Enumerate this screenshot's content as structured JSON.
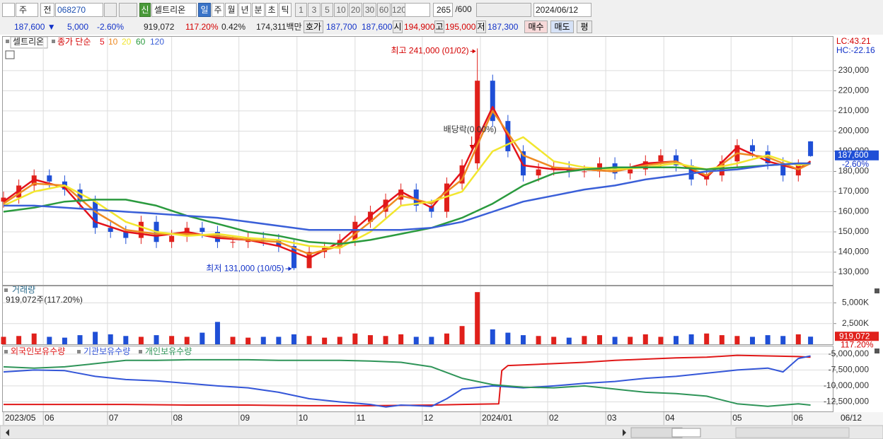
{
  "toolbar": {
    "market": "주",
    "scope": "전",
    "code": "068270",
    "badge": "신",
    "name": "셀트리온",
    "periods": [
      "일",
      "주",
      "월",
      "년",
      "분",
      "초",
      "틱"
    ],
    "intervals": [
      "1",
      "3",
      "5",
      "10",
      "20",
      "30",
      "60",
      "120"
    ],
    "count": "265",
    "max": "/600",
    "date": "2024/06/12"
  },
  "quote": {
    "price": "187,600 ▼",
    "change": "5,000",
    "change_rate": "-2.60%",
    "volume": "919,072",
    "volume_rate": "117.20%",
    "turnover": "0.42%",
    "amount": "174,311백만",
    "bid_ask_label": "호가",
    "ask": "187,700",
    "bid": "187,600",
    "open_label": "시",
    "open": "194,900",
    "high_label": "고",
    "high": "195,000",
    "low_label": "저",
    "low": "187,300",
    "buy": "매수",
    "sell": "매도",
    "avg": "평"
  },
  "chart_data": [
    {
      "type": "candlestick",
      "title": "셀트리온",
      "legend_label": "종가 단순",
      "corner_labels": [
        "LC:43.21",
        "HC:-22.16"
      ],
      "last_price_label": "187,600",
      "last_change_label": "-2.60%",
      "annotations": {
        "high": "최고 241,000 (01/02)",
        "low": "최저 131,000 (10/05)",
        "ex_dividend": "배당락(0.00%)"
      },
      "up_color": "#e0201b",
      "down_color": "#1f4fd6",
      "grid": true,
      "xlim": [
        0,
        271.5
      ],
      "ylim": [
        123700,
        246800
      ],
      "yticks": [
        {
          "value": 130000,
          "label": "130,000"
        },
        {
          "value": 140000,
          "label": "140,000"
        },
        {
          "value": 150000,
          "label": "150,000"
        },
        {
          "value": 160000,
          "label": "160,000"
        },
        {
          "value": 170000,
          "label": "170,000"
        },
        {
          "value": 180000,
          "label": "180,000"
        },
        {
          "value": 190000,
          "label": "190,000"
        },
        {
          "value": 200000,
          "label": "200,000"
        },
        {
          "value": 210000,
          "label": "210,000"
        },
        {
          "value": 220000,
          "label": "220,000"
        },
        {
          "value": 230000,
          "label": "230,000"
        }
      ],
      "x": [
        0,
        5,
        10,
        15,
        20,
        25,
        30,
        35,
        40,
        45,
        50,
        55,
        60,
        65,
        70,
        75,
        80,
        85,
        90,
        95,
        100,
        105,
        110,
        115,
        120,
        125,
        130,
        135,
        140,
        145,
        150,
        155,
        160,
        165,
        170,
        175,
        180,
        185,
        190,
        195,
        200,
        205,
        210,
        215,
        220,
        225,
        230,
        235,
        240,
        245,
        250,
        255,
        260,
        264
      ],
      "open": [
        165000,
        167000,
        173000,
        178000,
        175000,
        171000,
        165000,
        152000,
        150000,
        147000,
        155000,
        145000,
        148000,
        152000,
        150000,
        145000,
        145000,
        147000,
        146000,
        143000,
        132000,
        140000,
        142000,
        146000,
        155000,
        160000,
        166000,
        171000,
        163000,
        160000,
        174000,
        184000,
        225000,
        205000,
        190000,
        178000,
        181000,
        182000,
        180000,
        180000,
        184000,
        179000,
        181000,
        185000,
        188000,
        183000,
        176000,
        178000,
        185000,
        193000,
        190000,
        184000,
        178000,
        194900
      ],
      "high": [
        170000,
        176000,
        181000,
        181000,
        178000,
        174000,
        168000,
        155000,
        153000,
        158000,
        158000,
        151000,
        155000,
        155000,
        153000,
        148000,
        150000,
        150000,
        149000,
        146000,
        143000,
        145000,
        149000,
        158000,
        163000,
        169000,
        174000,
        174000,
        166000,
        177000,
        186000,
        241000,
        228000,
        208000,
        193000,
        184000,
        185000,
        185000,
        183000,
        187000,
        187000,
        184000,
        188000,
        191000,
        191000,
        186000,
        181000,
        188000,
        196000,
        196000,
        193000,
        187000,
        186000,
        195000
      ],
      "low": [
        162000,
        164000,
        170000,
        172000,
        168000,
        162000,
        149000,
        147000,
        144000,
        144000,
        142000,
        142000,
        145000,
        147000,
        142000,
        142000,
        142000,
        143000,
        140000,
        131000,
        132000,
        137000,
        139000,
        143000,
        152000,
        157000,
        163000,
        160000,
        157000,
        157000,
        171000,
        181000,
        202000,
        187000,
        175000,
        175000,
        178000,
        177000,
        177000,
        177000,
        176000,
        176000,
        178000,
        182000,
        180000,
        173000,
        173000,
        175000,
        182000,
        187000,
        181000,
        175000,
        175000,
        187300
      ],
      "close": [
        167000,
        173000,
        178000,
        175000,
        171000,
        165000,
        152000,
        150000,
        147000,
        155000,
        145000,
        148000,
        152000,
        150000,
        145000,
        145000,
        147000,
        146000,
        143000,
        132000,
        140000,
        142000,
        146000,
        155000,
        160000,
        166000,
        171000,
        163000,
        160000,
        174000,
        183000,
        225000,
        205000,
        190000,
        178000,
        181000,
        182000,
        180000,
        180000,
        184000,
        179000,
        181000,
        185000,
        188000,
        183000,
        176000,
        178000,
        185000,
        193000,
        190000,
        184000,
        178000,
        183000,
        187600
      ],
      "series": [
        {
          "name": "5",
          "color": "#e3121b",
          "x": [
            0,
            10,
            20,
            30,
            40,
            50,
            60,
            70,
            80,
            90,
            100,
            110,
            120,
            130,
            140,
            150,
            160,
            170,
            180,
            190,
            200,
            210,
            220,
            230,
            240,
            250,
            260,
            264
          ],
          "values": [
            165000,
            176000,
            172000,
            155000,
            150000,
            148000,
            150000,
            147000,
            146000,
            143000,
            137000,
            145000,
            158000,
            170000,
            162000,
            180000,
            212000,
            183000,
            181000,
            181000,
            180000,
            184000,
            185000,
            177000,
            192000,
            185000,
            181000,
            185000
          ]
        },
        {
          "name": "10",
          "color": "#ee8a22",
          "x": [
            0,
            10,
            20,
            30,
            40,
            50,
            60,
            70,
            80,
            90,
            100,
            110,
            120,
            130,
            140,
            150,
            160,
            170,
            180,
            190,
            200,
            210,
            220,
            230,
            240,
            250,
            260,
            264
          ],
          "values": [
            164000,
            174000,
            173000,
            160000,
            151000,
            149000,
            149000,
            148000,
            146000,
            145000,
            139000,
            143000,
            155000,
            168000,
            164000,
            176000,
            210000,
            188000,
            182000,
            181000,
            180000,
            183000,
            185000,
            178000,
            189000,
            187000,
            181000,
            184000
          ]
        },
        {
          "name": "20",
          "color": "#f2e62e",
          "x": [
            0,
            10,
            20,
            30,
            40,
            50,
            60,
            70,
            80,
            90,
            100,
            110,
            120,
            130,
            140,
            150,
            160,
            170,
            180,
            190,
            200,
            210,
            220,
            230,
            240,
            250,
            260,
            264
          ],
          "values": [
            163000,
            170000,
            173000,
            165000,
            155000,
            150000,
            148000,
            149000,
            147000,
            146000,
            143000,
            142000,
            150000,
            163000,
            165000,
            170000,
            190000,
            197000,
            185000,
            182000,
            181000,
            182000,
            184000,
            181000,
            184000,
            188000,
            183000,
            184000
          ]
        },
        {
          "name": "60",
          "color": "#2a9a3e",
          "x": [
            0,
            10,
            20,
            30,
            40,
            50,
            60,
            70,
            80,
            90,
            100,
            110,
            120,
            130,
            140,
            150,
            160,
            170,
            180,
            190,
            200,
            210,
            220,
            230,
            240,
            250,
            260,
            264
          ],
          "values": [
            160000,
            162000,
            165000,
            166000,
            166000,
            163000,
            158000,
            154000,
            150000,
            148000,
            145000,
            144000,
            146000,
            149000,
            152000,
            157000,
            164000,
            173000,
            179000,
            181000,
            182000,
            182000,
            182000,
            181000,
            182000,
            183000,
            184000,
            184000
          ]
        },
        {
          "name": "120",
          "color": "#3a5fd8",
          "x": [
            0,
            10,
            20,
            30,
            40,
            50,
            60,
            70,
            80,
            90,
            100,
            110,
            120,
            130,
            140,
            150,
            160,
            170,
            180,
            190,
            200,
            210,
            220,
            230,
            240,
            250,
            260,
            264
          ],
          "values": [
            163000,
            163000,
            162000,
            161000,
            160000,
            159000,
            158000,
            157000,
            155000,
            153000,
            151000,
            151000,
            151000,
            151000,
            152000,
            155000,
            160000,
            165000,
            168000,
            171000,
            173000,
            176000,
            178000,
            180000,
            181000,
            183000,
            184000,
            184000
          ]
        }
      ]
    },
    {
      "type": "bar",
      "title": "거래량",
      "subtitle": "919,072주(117.20%)",
      "last_value_label": "919,072",
      "last_rate_label": "117.20%",
      "grid": true,
      "xlim": [
        0,
        271.5
      ],
      "ylim": [
        0,
        7000
      ],
      "yticks": [
        {
          "value": 2500,
          "label": "2,500K"
        },
        {
          "value": 5000,
          "label": "5,000K"
        }
      ],
      "x": [
        0,
        5,
        10,
        15,
        20,
        25,
        30,
        35,
        40,
        45,
        50,
        55,
        60,
        65,
        70,
        75,
        80,
        85,
        90,
        95,
        100,
        105,
        110,
        115,
        120,
        125,
        130,
        135,
        140,
        145,
        150,
        155,
        160,
        165,
        170,
        175,
        180,
        185,
        190,
        195,
        200,
        205,
        210,
        215,
        220,
        225,
        230,
        235,
        240,
        245,
        250,
        255,
        260,
        264
      ],
      "values": [
        900,
        1000,
        1300,
        900,
        800,
        1100,
        1500,
        1200,
        1000,
        900,
        1100,
        1000,
        900,
        1400,
        2700,
        900,
        800,
        900,
        900,
        1200,
        1000,
        800,
        900,
        1300,
        1100,
        1000,
        1200,
        900,
        900,
        1300,
        2200,
        6300,
        1800,
        1400,
        1100,
        1000,
        900,
        800,
        1000,
        1100,
        900,
        900,
        1200,
        900,
        1000,
        1200,
        1300,
        1100,
        1000,
        900,
        1100,
        1000,
        1200,
        919.072
      ]
    },
    {
      "type": "line",
      "grid": true,
      "date_label": "06/12",
      "xlim": [
        0,
        271.5
      ],
      "ylim": [
        -14000000,
        -3800000
      ],
      "yticks": [
        {
          "value": -12500000,
          "label": "-12,500,000"
        },
        {
          "value": -10000000,
          "label": "-10,000,000"
        },
        {
          "value": -7500000,
          "label": "-7,500,000"
        },
        {
          "value": -5000000,
          "label": "-5,000,000"
        }
      ],
      "xticks": [
        {
          "value": 0,
          "label": "2023/05"
        },
        {
          "value": 13,
          "label": "06"
        },
        {
          "value": 34,
          "label": "07"
        },
        {
          "value": 55,
          "label": "08"
        },
        {
          "value": 77,
          "label": "09"
        },
        {
          "value": 96,
          "label": "10"
        },
        {
          "value": 115,
          "label": "11"
        },
        {
          "value": 137,
          "label": "12"
        },
        {
          "value": 156,
          "label": "2024/01"
        },
        {
          "value": 178,
          "label": "02"
        },
        {
          "value": 197,
          "label": "03"
        },
        {
          "value": 216,
          "label": "04"
        },
        {
          "value": 238,
          "label": "05"
        },
        {
          "value": 258,
          "label": "06"
        }
      ],
      "series": [
        {
          "name": "외국인보유수량",
          "color": "#e01818",
          "x": [
            0,
            20,
            40,
            60,
            80,
            100,
            120,
            140,
            150,
            162,
            163,
            165,
            170,
            180,
            190,
            200,
            210,
            220,
            230,
            240,
            250,
            260,
            264
          ],
          "values": [
            -12900000,
            -12900000,
            -12900000,
            -13000000,
            -13000000,
            -13100000,
            -13100000,
            -13000000,
            -12900000,
            -12800000,
            -7600000,
            -6800000,
            -6700000,
            -6500000,
            -6300000,
            -6000000,
            -5800000,
            -5600000,
            -5500000,
            -5200000,
            -5300000,
            -5400000,
            -5500000
          ]
        },
        {
          "name": "기관보유수량",
          "color": "#3456d8",
          "x": [
            0,
            10,
            20,
            30,
            40,
            50,
            60,
            70,
            80,
            90,
            100,
            110,
            120,
            125,
            130,
            140,
            145,
            150,
            160,
            170,
            180,
            190,
            200,
            210,
            220,
            230,
            240,
            250,
            255,
            260,
            264
          ],
          "values": [
            -7800000,
            -7500000,
            -7600000,
            -8500000,
            -9000000,
            -9200000,
            -9600000,
            -10000000,
            -10300000,
            -11000000,
            -12000000,
            -12500000,
            -12900000,
            -13300000,
            -13000000,
            -13200000,
            -12000000,
            -10500000,
            -10000000,
            -10300000,
            -10000000,
            -9600000,
            -9300000,
            -8800000,
            -8500000,
            -8000000,
            -7500000,
            -7200000,
            -7800000,
            -5700000,
            -5300000
          ]
        },
        {
          "name": "개인보유수량",
          "color": "#2e9458",
          "x": [
            0,
            10,
            20,
            30,
            40,
            50,
            60,
            70,
            80,
            90,
            100,
            110,
            120,
            130,
            140,
            150,
            160,
            170,
            180,
            190,
            200,
            210,
            220,
            230,
            240,
            250,
            260,
            264
          ],
          "values": [
            -7000000,
            -7200000,
            -7000000,
            -6500000,
            -6000000,
            -6000000,
            -5900000,
            -5900000,
            -5900000,
            -6000000,
            -6000000,
            -6000000,
            -6100000,
            -6300000,
            -7000000,
            -8800000,
            -9800000,
            -10200000,
            -10300000,
            -10000000,
            -10500000,
            -11000000,
            -11200000,
            -11600000,
            -12800000,
            -13200000,
            -12800000,
            -13000000
          ]
        }
      ]
    }
  ]
}
